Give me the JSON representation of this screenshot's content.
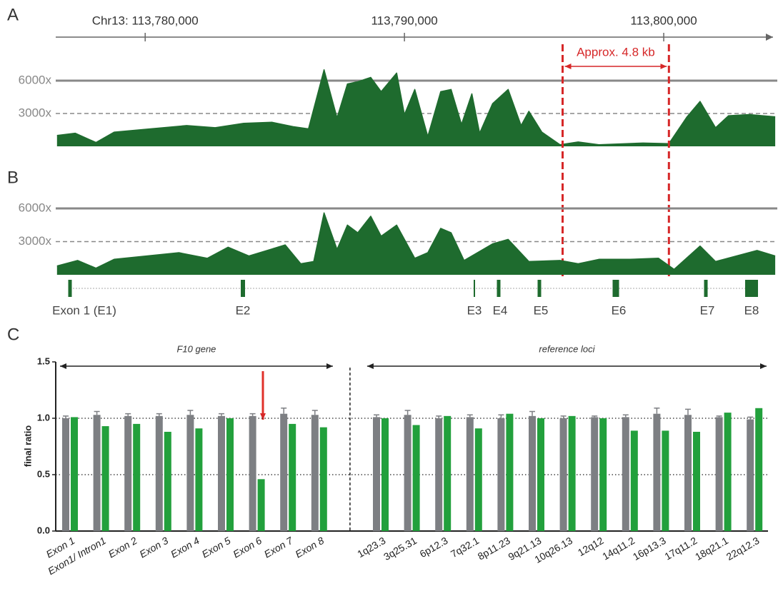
{
  "chart_data": [
    {
      "type": "area",
      "panel": "A",
      "color": "#1e6b2e",
      "xlim": [
        113776550,
        113804380
      ],
      "xticks": [
        {
          "value": 113780000,
          "label": "Chr13: 113,780,000"
        },
        {
          "value": 113790000,
          "label": "113,790,000"
        },
        {
          "value": 113800000,
          "label": "113,800,000"
        }
      ],
      "ylim": [
        0,
        6000
      ],
      "yticks": [
        {
          "value": 3000,
          "label": "3000x"
        },
        {
          "value": 6000,
          "label": "6000x"
        }
      ],
      "x": [
        113776600,
        113777300,
        113778100,
        113778800,
        113780200,
        113781600,
        113782700,
        113783800,
        113784900,
        113785700,
        113786300,
        113786900,
        113787400,
        113787800,
        113788200,
        113788700,
        113789100,
        113789700,
        113790000,
        113790400,
        113790900,
        113791400,
        113791800,
        113792200,
        113792600,
        113792900,
        113793400,
        113794000,
        113794500,
        113794800,
        113795300,
        113796000,
        113796700,
        113797500,
        113799200,
        113800200,
        113800900,
        113801400,
        113802000,
        113802500,
        113803300,
        113804300
      ],
      "values": [
        1000,
        1200,
        350,
        1300,
        1600,
        1900,
        1700,
        2100,
        2200,
        1800,
        1600,
        7000,
        2600,
        5700,
        5900,
        6300,
        5000,
        6700,
        2900,
        5200,
        900,
        5000,
        5200,
        2000,
        4800,
        1200,
        3900,
        5200,
        1900,
        3200,
        1300,
        150,
        400,
        150,
        300,
        250,
        2700,
        4100,
        1700,
        2800,
        2900,
        2700
      ],
      "annotation": {
        "text": "Approx. 4.8 kb",
        "x": [
          113796100,
          113800200
        ],
        "color": "#d62728"
      }
    },
    {
      "type": "area",
      "panel": "B",
      "color": "#1e6b2e",
      "xlim": [
        113776550,
        113804380
      ],
      "ylim": [
        0,
        6000
      ],
      "yticks": [
        {
          "value": 3000,
          "label": "3000x"
        },
        {
          "value": 6000,
          "label": "6000x"
        }
      ],
      "x": [
        113776600,
        113777400,
        113778100,
        113778800,
        113781300,
        113782400,
        113783200,
        113784000,
        113785400,
        113786000,
        113786500,
        113786900,
        113787400,
        113787800,
        113788200,
        113788700,
        113789100,
        113789700,
        113790400,
        113790900,
        113791400,
        113791800,
        113792300,
        113793400,
        113794000,
        113794800,
        113796000,
        113796700,
        113797500,
        113798700,
        113799800,
        113800400,
        113801400,
        113802000,
        113802800,
        113803600,
        113804300
      ],
      "values": [
        800,
        1300,
        600,
        1400,
        2000,
        1500,
        2500,
        1700,
        2700,
        1000,
        1200,
        5600,
        2300,
        4500,
        3800,
        5300,
        3500,
        4500,
        1500,
        2000,
        4200,
        3800,
        1300,
        2800,
        3200,
        1200,
        1300,
        1000,
        1400,
        1400,
        1500,
        500,
        2600,
        1200,
        1700,
        2200,
        1700
      ],
      "exons": [
        "Exon 1 (E1)",
        "E2",
        "E3",
        "E4",
        "E5",
        "E6",
        "E7",
        "E8"
      ]
    },
    {
      "type": "bar",
      "panel": "C",
      "ylabel": "final ratio",
      "groups": [
        "F10 gene",
        "reference loci"
      ],
      "categories": [
        "Exon 1",
        "Exon1/ Intron1",
        "Exon 2",
        "Exon 3",
        "Exon 4",
        "Exon 5",
        "Exon 6",
        "Exon 7",
        "Exon 8",
        "1q23.3",
        "3q25.31",
        "6p12.3",
        "7q32.1",
        "8p11.23",
        "9q21.13",
        "10q26.13",
        "12q12",
        "14q11.2",
        "16p13.3",
        "17q11.2",
        "18q21.1",
        "22q12.3"
      ],
      "series": [
        {
          "color": "#7d7f83",
          "values": [
            1.0,
            1.03,
            1.02,
            1.02,
            1.03,
            1.02,
            1.02,
            1.04,
            1.03,
            1.01,
            1.03,
            1.0,
            1.01,
            1.0,
            1.02,
            1.0,
            1.01,
            1.01,
            1.04,
            1.03,
            1.01,
            0.99
          ],
          "errors": [
            0.02,
            0.03,
            0.02,
            0.02,
            0.04,
            0.02,
            0.02,
            0.05,
            0.04,
            0.02,
            0.04,
            0.02,
            0.02,
            0.03,
            0.04,
            0.02,
            0.01,
            0.02,
            0.05,
            0.05,
            0.01,
            0.02
          ]
        },
        {
          "color": "#22a03c",
          "values": [
            1.01,
            0.93,
            0.95,
            0.88,
            0.91,
            1.0,
            0.46,
            0.95,
            0.92,
            1.0,
            0.94,
            1.02,
            0.91,
            1.04,
            1.0,
            1.02,
            1.0,
            0.89,
            0.89,
            0.88,
            1.05,
            1.09
          ]
        }
      ],
      "ylim": [
        0,
        1.5
      ],
      "yticks": [
        {
          "value": 0,
          "label": "0.0"
        },
        0.5,
        {
          "value": 1,
          "label": "1.0"
        },
        1.5
      ]
    }
  ]
}
